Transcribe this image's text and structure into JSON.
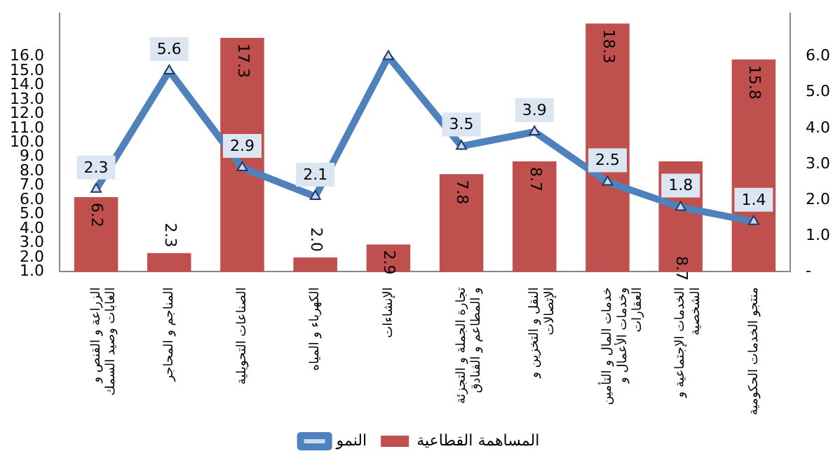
{
  "chart_data": {
    "type": "bar",
    "categories": [
      "الزراعة و القنص و الغابات وصيد السمك",
      "المناجم و المحاجر",
      "الصناعات التحويلية",
      "الكهرباء و المياه",
      "الإنشاءات",
      "تجارة الجملة و التجزئة و المطاعم و الفنادق",
      "النقل و التخزين و الإتصالات",
      "خدمات المال و التأمين وخدمات الأعمال و العقارات",
      "الخدمات الإجتماعية و الشخصية",
      "منتجو الخدمات الحكومية"
    ],
    "series": [
      {
        "name": "المساهمة القطاعية",
        "color": "#c0504d",
        "values": [
          6.2,
          2.3,
          17.3,
          2.0,
          2.9,
          7.8,
          8.7,
          18.3,
          8.7,
          15.8
        ],
        "value_labels": [
          "6.2",
          "2.3",
          "17.3",
          "2.0",
          "2.9",
          "7.8",
          "8.7",
          "18.3",
          "8.7",
          "15.8"
        ]
      },
      {
        "name": "النمو",
        "type": "line",
        "axis": "y2",
        "color": "#4f81bd",
        "marker": "triangle",
        "values": [
          2.3,
          5.6,
          2.9,
          2.1,
          6.0,
          3.5,
          3.9,
          2.5,
          1.8,
          1.4
        ],
        "value_labels": [
          "2.3",
          "5.6",
          "2.9",
          "2.1",
          null,
          "3.5",
          "3.9",
          "2.5",
          "1.8",
          "1.4"
        ]
      }
    ],
    "ylim": [
      1,
      19
    ],
    "yticks": [
      {
        "value": 1,
        "label": "1.0"
      },
      {
        "value": 2,
        "label": "2.0"
      },
      {
        "value": 3,
        "label": "3.0"
      },
      {
        "value": 4,
        "label": "4.0"
      },
      {
        "value": 5,
        "label": "5.0"
      },
      {
        "value": 6,
        "label": "6.0"
      },
      {
        "value": 7,
        "label": "7.0"
      },
      {
        "value": 8,
        "label": "8.0"
      },
      {
        "value": 9,
        "label": "9.0"
      },
      {
        "value": 10,
        "label": "10.0"
      },
      {
        "value": 11,
        "label": "11.0"
      },
      {
        "value": 12,
        "label": "12.0"
      },
      {
        "value": 13,
        "label": "13.0"
      },
      {
        "value": 14,
        "label": "14.0"
      },
      {
        "value": 15,
        "label": "15.0"
      },
      {
        "value": 16,
        "label": "16.0"
      }
    ],
    "y2lim": [
      0,
      7.2
    ],
    "y2ticks": [
      {
        "value": 0,
        "label": "-"
      },
      {
        "value": 1,
        "label": "1.0"
      },
      {
        "value": 2,
        "label": "2.0"
      },
      {
        "value": 3,
        "label": "3.0"
      },
      {
        "value": 4,
        "label": "4.0"
      },
      {
        "value": 5,
        "label": "5.0"
      },
      {
        "value": 6,
        "label": "6.0"
      }
    ],
    "grid": false,
    "legend": "bottom"
  }
}
